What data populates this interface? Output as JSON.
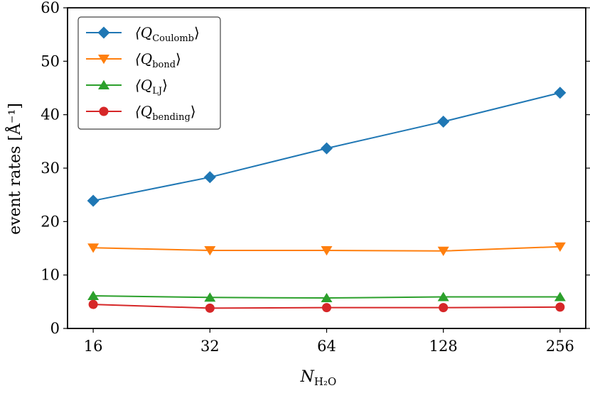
{
  "chart_data": {
    "type": "line",
    "title": "",
    "xlabel": "N",
    "xlabel_sub": "H₂O",
    "ylabel": "event rates [Å⁻¹]",
    "x_scale": "log2",
    "categories": [
      "16",
      "32",
      "64",
      "128",
      "256"
    ],
    "x": [
      16,
      32,
      64,
      128,
      256
    ],
    "ylim": [
      0,
      60
    ],
    "yticks": [
      "0",
      "10",
      "20",
      "30",
      "40",
      "50",
      "60"
    ],
    "grid": false,
    "legend_position": "top-left",
    "series": [
      {
        "name": "⟨Q",
        "sub": "Coulomb",
        "close": "⟩",
        "color": "#1f77b4",
        "marker": "diamond",
        "values": [
          23.9,
          28.3,
          33.7,
          38.7,
          44.1
        ]
      },
      {
        "name": "⟨Q",
        "sub": "bond",
        "close": "⟩",
        "color": "#ff7f0e",
        "marker": "triangle-down",
        "values": [
          15.1,
          14.6,
          14.6,
          14.5,
          15.3
        ]
      },
      {
        "name": "⟨Q",
        "sub": "LJ",
        "close": "⟩",
        "color": "#2ca02c",
        "marker": "triangle-up",
        "values": [
          6.1,
          5.8,
          5.7,
          5.9,
          5.9
        ]
      },
      {
        "name": "⟨Q",
        "sub": "bending",
        "close": "⟩",
        "color": "#d62728",
        "marker": "circle",
        "values": [
          4.5,
          3.8,
          3.9,
          3.9,
          4.0
        ]
      }
    ]
  }
}
